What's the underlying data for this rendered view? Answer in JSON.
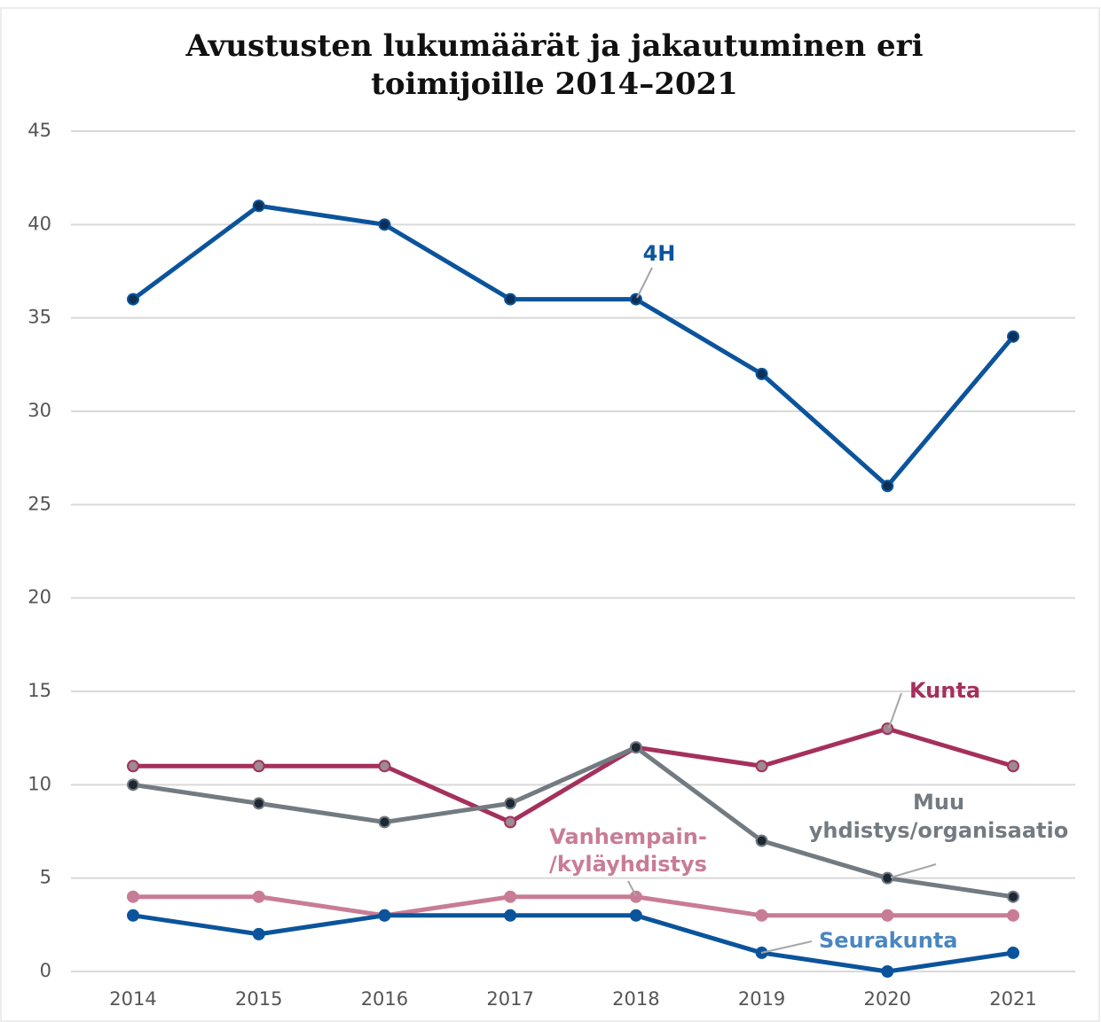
{
  "chart_data": {
    "type": "line",
    "title": [
      "Avustusten lukumäärät ja jakautuminen eri",
      "toimijoille 2014–2021"
    ],
    "categories": [
      "2014",
      "2015",
      "2016",
      "2017",
      "2018",
      "2019",
      "2020",
      "2021"
    ],
    "ylim": [
      0,
      45
    ],
    "yticks": [
      0,
      5,
      10,
      15,
      20,
      25,
      30,
      35,
      40,
      45
    ],
    "grid": true,
    "series": [
      {
        "name": [
          "4H"
        ],
        "color": "#0b549c",
        "label_color": "#0b549c",
        "marker_color": "#0d2f55",
        "values": [
          36,
          41,
          40,
          36,
          36,
          32,
          26,
          34
        ]
      },
      {
        "name": [
          "Kunta"
        ],
        "color": "#a5305c",
        "label_color": "#a5305c",
        "marker_color": "#9e8a92",
        "values": [
          11,
          11,
          11,
          8,
          12,
          11,
          13,
          11
        ]
      },
      {
        "name": [
          "Muu",
          "yhdistys/organisaatio"
        ],
        "color": "#737b82",
        "label_color": "#737b82",
        "marker_color": "#1e2833",
        "values": [
          10,
          9,
          8,
          9,
          12,
          7,
          5,
          4
        ]
      },
      {
        "name": [
          "Vanhempain-",
          "/kyläyhdistys"
        ],
        "color": "#c87c96",
        "label_color": "#c87c96",
        "marker_color": "#c87c96",
        "values": [
          4,
          4,
          3,
          4,
          4,
          3,
          3,
          3
        ]
      },
      {
        "name": [
          "Seurakunta"
        ],
        "color": "#0b549c",
        "label_color": "#4a86c1",
        "marker_color": "#0b549c",
        "values": [
          3,
          2,
          3,
          3,
          3,
          1,
          0,
          1
        ]
      }
    ]
  }
}
